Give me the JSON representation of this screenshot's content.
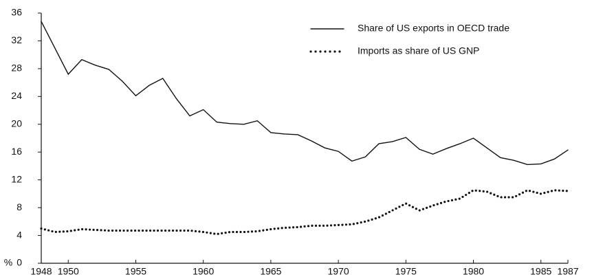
{
  "chart_data": {
    "type": "line",
    "y_label": "%",
    "x": [
      1948,
      1949,
      1950,
      1951,
      1952,
      1953,
      1954,
      1955,
      1956,
      1957,
      1958,
      1959,
      1960,
      1961,
      1962,
      1963,
      1964,
      1965,
      1966,
      1967,
      1968,
      1969,
      1970,
      1971,
      1972,
      1973,
      1974,
      1975,
      1976,
      1977,
      1978,
      1979,
      1980,
      1981,
      1982,
      1983,
      1984,
      1985,
      1986,
      1987
    ],
    "series": [
      {
        "name": "Share of US exports in OECD trade",
        "color": "#111111",
        "style": "solid",
        "values": [
          34.8,
          31,
          27.2,
          29.3,
          28.5,
          27.9,
          26.2,
          24.1,
          25.6,
          26.6,
          23.7,
          21.2,
          22.1,
          20.3,
          20.1,
          20.0,
          20.5,
          18.8,
          18.6,
          18.5,
          17.6,
          16.6,
          16.1,
          14.7,
          15.3,
          17.2,
          17.5,
          18.1,
          16.4,
          15.7,
          16.5,
          17.2,
          18.0,
          16.6,
          15.2,
          14.8,
          14.2,
          14.3,
          15.0,
          16.3
        ]
      },
      {
        "name": "Imports as share of US GNP",
        "color": "#111111",
        "style": "dotted",
        "values": [
          5.0,
          4.5,
          4.6,
          4.9,
          4.8,
          4.7,
          4.7,
          4.7,
          4.7,
          4.7,
          4.7,
          4.7,
          4.5,
          4.2,
          4.5,
          4.5,
          4.6,
          4.9,
          5.1,
          5.2,
          5.4,
          5.4,
          5.5,
          5.6,
          6.0,
          6.6,
          7.6,
          8.6,
          7.6,
          8.3,
          8.9,
          9.3,
          10.5,
          10.3,
          9.5,
          9.5,
          10.5,
          10.0,
          10.5,
          10.4
        ]
      }
    ],
    "xlim": [
      1948,
      1987
    ],
    "xticks": [
      1948,
      1950,
      1955,
      1960,
      1965,
      1970,
      1975,
      1980,
      1985,
      1987
    ],
    "ylim": [
      0,
      36
    ],
    "yticks": [
      0,
      4,
      8,
      12,
      16,
      20,
      24,
      28,
      32,
      36
    ],
    "grid": false,
    "legend": "upper right"
  }
}
